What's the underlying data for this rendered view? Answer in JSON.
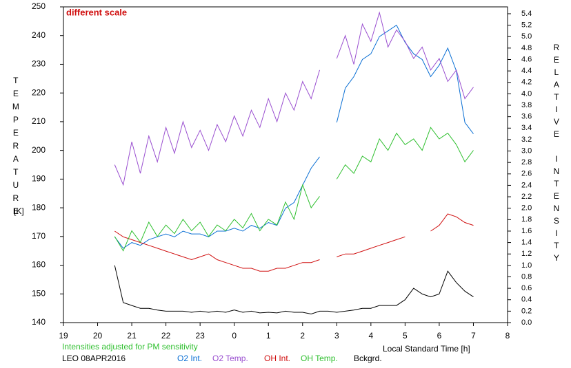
{
  "chart_data": {
    "type": "line",
    "annotation": "different scale",
    "note": "Intensities adjusted for PM sensitivity",
    "station": "LEO 08APR2016",
    "ylabel": "TEMPERATURE",
    "yunit": "[K]",
    "y2label": "RELATIVE INTENSITY",
    "xlabel": "Local Standard Time [h]",
    "xlim": [
      19,
      32
    ],
    "xticks": [
      19,
      20,
      21,
      22,
      23,
      {
        "value": 24,
        "label": "0"
      },
      {
        "value": 25,
        "label": "1"
      },
      {
        "value": 26,
        "label": "2"
      },
      {
        "value": 27,
        "label": "3"
      },
      {
        "value": 28,
        "label": "4"
      },
      {
        "value": 29,
        "label": "5"
      },
      {
        "value": 30,
        "label": "6"
      },
      {
        "value": 31,
        "label": "7"
      },
      {
        "value": 32,
        "label": "8"
      }
    ],
    "ylim": [
      140,
      250
    ],
    "yticks": [
      140,
      150,
      160,
      170,
      180,
      190,
      200,
      210,
      220,
      230,
      240,
      250
    ],
    "y2lim": [
      0,
      5.52
    ],
    "y2ticks": [
      {
        "value": 0,
        "label": "0.0"
      },
      {
        "value": 0.2,
        "label": "0.2"
      },
      {
        "value": 0.4,
        "label": "0.4"
      },
      {
        "value": 0.6,
        "label": "0.6"
      },
      {
        "value": 0.8,
        "label": "0.8"
      },
      {
        "value": 1,
        "label": "1.0"
      },
      {
        "value": 1.2,
        "label": "1.2"
      },
      {
        "value": 1.4,
        "label": "1.4"
      },
      {
        "value": 1.6,
        "label": "1.6"
      },
      {
        "value": 1.8,
        "label": "1.8"
      },
      {
        "value": 2,
        "label": "2.0"
      },
      {
        "value": 2.2,
        "label": "2.2"
      },
      {
        "value": 2.4,
        "label": "2.4"
      },
      {
        "value": 2.6,
        "label": "2.6"
      },
      {
        "value": 2.8,
        "label": "2.8"
      },
      {
        "value": 3,
        "label": "3.0"
      },
      {
        "value": 3.2,
        "label": "3.2"
      },
      {
        "value": 3.4,
        "label": "3.4"
      },
      {
        "value": 3.6,
        "label": "3.6"
      },
      {
        "value": 3.8,
        "label": "3.8"
      },
      {
        "value": 4,
        "label": "4.0"
      },
      {
        "value": 4.2,
        "label": "4.2"
      },
      {
        "value": 4.4,
        "label": "4.4"
      },
      {
        "value": 4.6,
        "label": "4.6"
      },
      {
        "value": 4.8,
        "label": "4.8"
      },
      {
        "value": 5,
        "label": "5.0"
      },
      {
        "value": 5.2,
        "label": "5.2"
      },
      {
        "value": 5.4,
        "label": "5.4"
      }
    ],
    "x": [
      20.5,
      20.75,
      21,
      21.25,
      21.5,
      21.75,
      22,
      22.25,
      22.5,
      22.75,
      23,
      23.25,
      23.5,
      23.75,
      24,
      24.25,
      24.5,
      24.75,
      25,
      25.25,
      25.5,
      25.75,
      26,
      26.25,
      26.5,
      26.75,
      27,
      27.25,
      27.5,
      27.75,
      28,
      28.25,
      28.5,
      28.75,
      29,
      29.25,
      29.5,
      29.75,
      30,
      30.25,
      30.5,
      30.75,
      31
    ],
    "series": [
      {
        "name": "O2 Int.",
        "color": "#0a6fd4",
        "axis": "y2",
        "values": [
          1.5,
          1.3,
          1.4,
          1.35,
          1.45,
          1.5,
          1.55,
          1.5,
          1.6,
          1.55,
          1.55,
          1.5,
          1.6,
          1.6,
          1.65,
          1.6,
          1.7,
          1.65,
          1.75,
          1.7,
          2.0,
          2.1,
          2.4,
          2.7,
          2.9,
          null,
          3.5,
          4.1,
          4.3,
          4.6,
          4.7,
          5.0,
          5.1,
          5.2,
          4.9,
          4.7,
          4.6,
          4.3,
          4.5,
          4.8,
          4.4,
          3.5,
          3.3
        ]
      },
      {
        "name": "O2 Temp.",
        "color": "#9a4fd0",
        "values": [
          195,
          188,
          203,
          192,
          205,
          196,
          208,
          199,
          210,
          201,
          207,
          200,
          209,
          203,
          212,
          205,
          214,
          208,
          218,
          210,
          220,
          214,
          224,
          218,
          228,
          null,
          232,
          240,
          230,
          244,
          238,
          248,
          236,
          242,
          238,
          232,
          236,
          228,
          232,
          224,
          228,
          218,
          222
        ]
      },
      {
        "name": "OH Int.",
        "color": "#d01010",
        "axis": "y2",
        "values": [
          1.6,
          1.5,
          1.45,
          1.4,
          1.35,
          1.3,
          1.25,
          1.2,
          1.15,
          1.1,
          1.15,
          1.2,
          1.1,
          1.05,
          1.0,
          0.95,
          0.95,
          0.9,
          0.9,
          0.95,
          0.95,
          1.0,
          1.05,
          1.05,
          1.1,
          null,
          1.15,
          1.2,
          1.2,
          1.25,
          1.3,
          1.35,
          1.4,
          1.45,
          1.5,
          null,
          null,
          1.6,
          1.7,
          1.9,
          1.85,
          1.75,
          1.7
        ]
      },
      {
        "name": "OH Temp.",
        "color": "#30c030",
        "values": [
          170,
          165,
          172,
          168,
          175,
          170,
          174,
          171,
          176,
          172,
          175,
          170,
          174,
          172,
          176,
          173,
          178,
          172,
          176,
          174,
          182,
          176,
          188,
          180,
          184,
          null,
          190,
          195,
          192,
          198,
          196,
          204,
          200,
          206,
          202,
          204,
          200,
          208,
          204,
          206,
          202,
          196,
          200
        ]
      },
      {
        "name": "Bckgrd.",
        "color": "#000000",
        "axis": "y2",
        "values": [
          1.0,
          0.35,
          0.3,
          0.25,
          0.25,
          0.22,
          0.2,
          0.2,
          0.2,
          0.18,
          0.2,
          0.18,
          0.2,
          0.18,
          0.22,
          0.18,
          0.2,
          0.17,
          0.18,
          0.17,
          0.2,
          0.18,
          0.18,
          0.15,
          0.2,
          0.2,
          0.18,
          0.2,
          0.22,
          0.25,
          0.25,
          0.3,
          0.3,
          0.3,
          0.4,
          0.6,
          0.5,
          0.45,
          0.5,
          0.9,
          0.7,
          0.55,
          0.45
        ]
      }
    ]
  }
}
